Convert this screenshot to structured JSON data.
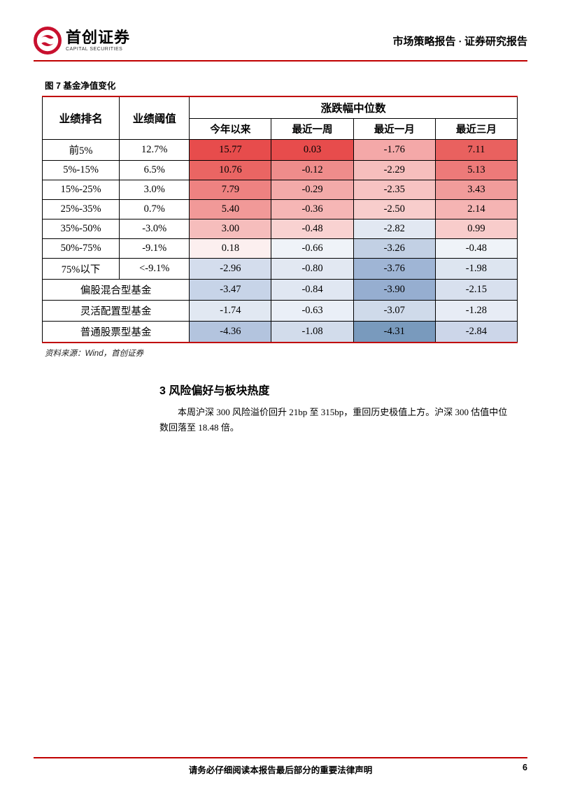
{
  "header": {
    "logo_cn": "首创证券",
    "logo_en": "CAPITAL SECURITIES",
    "right_text": "市场策略报告 · 证券研究报告"
  },
  "figure": {
    "label": "图 7 基金净值变化",
    "source": "资料来源：Wind，首创证券"
  },
  "table": {
    "super_header": "涨跌幅中位数",
    "columns": [
      "业绩排名",
      "业绩阈值",
      "今年以来",
      "最近一周",
      "最近一月",
      "最近三月"
    ],
    "rows": [
      {
        "rank": "前5%",
        "threshold": "12.7%",
        "vals": [
          "15.77",
          "0.03",
          "-1.76",
          "7.11"
        ],
        "colors": [
          "#e74c4c",
          "#e74c4c",
          "#f4a8a8",
          "#e9615f"
        ]
      },
      {
        "rank": "5%-15%",
        "threshold": "6.5%",
        "vals": [
          "10.76",
          "-0.12",
          "-2.29",
          "5.13"
        ],
        "colors": [
          "#ea6563",
          "#ef8c8b",
          "#f6bebd",
          "#ed7a79"
        ]
      },
      {
        "rank": "15%-25%",
        "threshold": "3.0%",
        "vals": [
          "7.79",
          "-0.29",
          "-2.35",
          "3.43"
        ],
        "colors": [
          "#ee8281",
          "#f3aaa9",
          "#f7c3c2",
          "#f19c9b"
        ]
      },
      {
        "rank": "25%-35%",
        "threshold": "0.7%",
        "vals": [
          "5.40",
          "-0.36",
          "-2.50",
          "2.14"
        ],
        "colors": [
          "#f19998",
          "#f6b6b5",
          "#f8cdcc",
          "#f5b4b3"
        ]
      },
      {
        "rank": "35%-50%",
        "threshold": "-3.0%",
        "vals": [
          "3.00",
          "-0.48",
          "-2.82",
          "0.99"
        ],
        "colors": [
          "#f6bdbc",
          "#f9d2d1",
          "#e2e8f2",
          "#f8cccb"
        ]
      },
      {
        "rank": "50%-75%",
        "threshold": "-9.1%",
        "vals": [
          "0.18",
          "-0.66",
          "-3.26",
          "-0.48"
        ],
        "colors": [
          "#fcefef",
          "#eff3f8",
          "#c2d0e4",
          "#eff3f8"
        ]
      },
      {
        "rank": "75%以下",
        "threshold": "<-9.1%",
        "vals": [
          "-2.96",
          "-0.80",
          "-3.76",
          "-1.98"
        ],
        "colors": [
          "#d4dded",
          "#e2e8f2",
          "#9fb5d5",
          "#dde5f0"
        ]
      }
    ],
    "merged_rows": [
      {
        "label": "偏股混合型基金",
        "vals": [
          "-3.47",
          "-0.84",
          "-3.90",
          "-2.15"
        ],
        "colors": [
          "#c7d4e8",
          "#e0e7f2",
          "#96aed0",
          "#d8e0ee"
        ]
      },
      {
        "label": "灵活配置型基金",
        "vals": [
          "-1.74",
          "-0.63",
          "-3.07",
          "-1.28"
        ],
        "colors": [
          "#e1e8f2",
          "#eaeff7",
          "#cfdaea",
          "#e7ecf5"
        ]
      },
      {
        "label": "普通股票型基金",
        "vals": [
          "-4.36",
          "-1.08",
          "-4.31",
          "-2.84"
        ],
        "colors": [
          "#b3c4de",
          "#d2dceb",
          "#799abd",
          "#ccd6e9"
        ]
      }
    ]
  },
  "section": {
    "title": "3 风险偏好与板块热度",
    "body": "本周沪深 300 风险溢价回升 21bp 至 315bp，重回历史极值上方。沪深 300 估值中位数回落至 18.48 倍。"
  },
  "footer": {
    "disclaimer": "请务必仔细阅读本报告最后部分的重要法律声明",
    "page": "6"
  }
}
